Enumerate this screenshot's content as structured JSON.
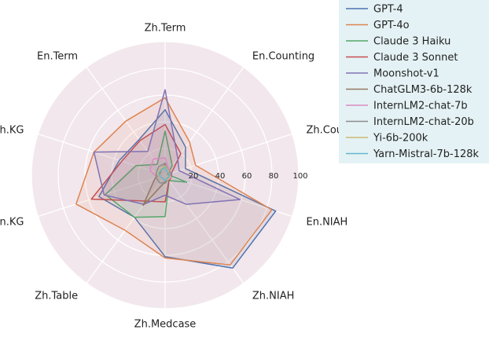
{
  "chart_data": {
    "type": "radar",
    "axes": [
      "Zh.Term",
      "En.Counting",
      "Zh.Counting",
      "En.NIAH",
      "Zh.NIAH",
      "Zh.Medcase",
      "Zh.Table",
      "En.KG",
      "Zh.KG",
      "En.Term"
    ],
    "rlim": [
      0,
      100
    ],
    "rticks": [
      20,
      40,
      60,
      80,
      100
    ],
    "grid": true,
    "legend_position": "top-right",
    "series": [
      {
        "name": "GPT-4",
        "color": "#4c72b0",
        "values": [
          49,
          26,
          16,
          87,
          86,
          61,
          39,
          52,
          36,
          33
        ]
      },
      {
        "name": "GPT-4o",
        "color": "#dd8452",
        "values": [
          58,
          31,
          24,
          84,
          83,
          62,
          51,
          70,
          56,
          50
        ]
      },
      {
        "name": "Claude 3 Haiku",
        "color": "#55a868",
        "values": [
          33,
          9,
          2,
          17,
          5,
          31,
          39,
          47,
          23,
          10
        ]
      },
      {
        "name": "Claude 3 Sonnet",
        "color": "#c44e52",
        "values": [
          38,
          20,
          5,
          5,
          5,
          20,
          24,
          58,
          34,
          32
        ]
      },
      {
        "name": "Moonshot-v1",
        "color": "#8172b3",
        "values": [
          64,
          16,
          11,
          59,
          27,
          15,
          27,
          48,
          56,
          22
        ]
      },
      {
        "name": "ChatGLM3-6b-128k",
        "color": "#937860",
        "values": [
          8,
          4,
          4,
          4,
          4,
          5,
          28,
          8,
          4,
          5
        ]
      },
      {
        "name": "InternLM2-chat-7b",
        "color": "#da8bc3",
        "values": [
          13,
          5,
          4,
          5,
          4,
          4,
          3,
          6,
          12,
          15
        ]
      },
      {
        "name": "InternLM2-chat-20b",
        "color": "#8c8c8c",
        "values": [
          9,
          4,
          5,
          4,
          4,
          6,
          7,
          7,
          7,
          8
        ]
      },
      {
        "name": "Yi-6b-200k",
        "color": "#ccb974",
        "values": [
          7,
          4,
          3,
          4,
          4,
          4,
          3,
          5,
          6,
          6
        ]
      },
      {
        "name": "Yarn-Mistral-7b-128k",
        "color": "#64b5cd",
        "values": [
          6,
          3,
          3,
          3,
          3,
          4,
          3,
          4,
          5,
          5
        ]
      }
    ]
  }
}
